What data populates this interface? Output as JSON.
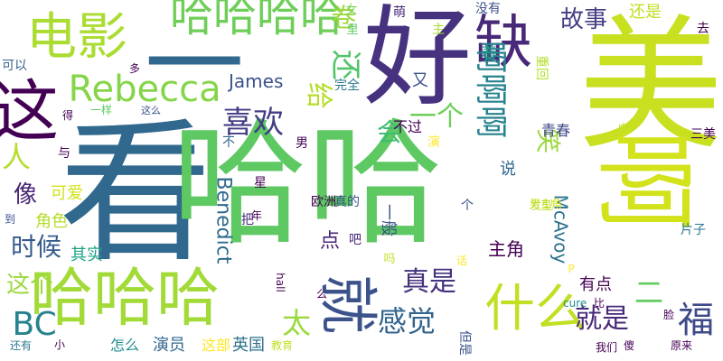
{
  "words": [
    {
      "text": "看",
      "color": "#31688e"
    },
    {
      "text": "美",
      "color": "#c8e020"
    },
    {
      "text": "哈哈",
      "color": "#5ec962"
    },
    {
      "text": "好",
      "color": "#46327e"
    },
    {
      "text": "一",
      "color": "#31688e"
    },
    {
      "text": "啊",
      "color": "#d2e21b"
    },
    {
      "text": "电影",
      "color": "#aadc32"
    },
    {
      "text": "这",
      "color": "#440154"
    },
    {
      "text": "哈哈哈哈",
      "color": "#6ece58"
    },
    {
      "text": "缺",
      "color": "#482878"
    },
    {
      "text": "哈哈哈",
      "color": "#a2da37"
    },
    {
      "text": "就",
      "color": "#3b528b"
    },
    {
      "text": "什么",
      "color": "#c2df23"
    },
    {
      "text": "Rebecca",
      "color": "#86d549"
    },
    {
      "text": "喜欢",
      "color": "#433e85"
    },
    {
      "text": "啊啊啊",
      "color": "#26828e"
    },
    {
      "text": "还",
      "color": "#52c569"
    },
    {
      "text": "卷",
      "color": "#9bd93c"
    },
    {
      "text": "给",
      "color": "#b5de2b"
    },
    {
      "text": "故事",
      "color": "#433e85"
    },
    {
      "text": "还是",
      "color": "#c2df23"
    },
    {
      "text": "James",
      "color": "#3b528b"
    },
    {
      "text": "像",
      "color": "#482576"
    },
    {
      "text": "时候",
      "color": "#365c8d"
    },
    {
      "text": "这个",
      "color": "#9bd93c"
    },
    {
      "text": "BC",
      "color": "#26828e"
    },
    {
      "text": "感觉",
      "color": "#32648e"
    },
    {
      "text": "就是",
      "color": "#482878"
    },
    {
      "text": "真是",
      "color": "#46327e"
    },
    {
      "text": "太",
      "color": "#9bd93c"
    },
    {
      "text": "福",
      "color": "#3e4989"
    },
    {
      "text": "会",
      "color": "#3fbc73"
    },
    {
      "text": "人",
      "color": "#b5de2b"
    },
    {
      "text": "笑",
      "color": "#9bd93c"
    },
    {
      "text": "一个",
      "color": "#6ece58"
    },
    {
      "text": "Benedict",
      "color": "#306a8e"
    },
    {
      "text": "McAvoy",
      "color": "#2c728e"
    },
    {
      "text": "主角",
      "color": "#440154"
    },
    {
      "text": "点",
      "color": "#482576"
    },
    {
      "text": "二",
      "color": "#63cb5f"
    },
    {
      "text": "着",
      "color": "#1f958b"
    },
    {
      "text": "又",
      "color": "#3b528b"
    },
    {
      "text": "其实",
      "color": "#20a386"
    },
    {
      "text": "可爱",
      "color": "#d2e21b"
    },
    {
      "text": "角色",
      "color": "#b5de2b"
    },
    {
      "text": "有点",
      "color": "#440154"
    },
    {
      "text": "演员",
      "color": "#31688e"
    },
    {
      "text": "这部",
      "color": "#fde725"
    },
    {
      "text": "英国",
      "color": "#2d718e"
    },
    {
      "text": "怎么",
      "color": "#228d8d"
    },
    {
      "text": "说",
      "color": "#31688e"
    },
    {
      "text": "不过",
      "color": "#440154"
    },
    {
      "text": "可以",
      "color": "#33638d"
    },
    {
      "text": "没有",
      "color": "#3b528b"
    },
    {
      "text": "青春",
      "color": "#3f4788"
    },
    {
      "text": "片子",
      "color": "#2a788e"
    },
    {
      "text": "三美",
      "color": "#440154"
    },
    {
      "text": "完全",
      "color": "#2a788e"
    },
    {
      "text": "重回",
      "color": "#b5de2b"
    },
    {
      "text": "男主角",
      "color": "#d2e21b"
    },
    {
      "text": "欧洲",
      "color": "#440154"
    },
    {
      "text": "真的",
      "color": "#3b528b"
    },
    {
      "text": "一般",
      "color": "#3b528b"
    },
    {
      "text": "发型",
      "color": "#b5de2b"
    },
    {
      "text": "女",
      "color": "#75d054"
    },
    {
      "text": "萌",
      "color": "#482878"
    },
    {
      "text": "里",
      "color": "#5ec962"
    },
    {
      "text": "主",
      "color": "#aadc32"
    },
    {
      "text": "去",
      "color": "#440154"
    },
    {
      "text": "这么",
      "color": "#3b528b"
    },
    {
      "text": "一样",
      "color": "#5ec962"
    },
    {
      "text": "得",
      "color": "#440154"
    },
    {
      "text": "多",
      "color": "#440154"
    },
    {
      "text": "与",
      "color": "#440154"
    },
    {
      "text": "演",
      "color": "#fde725"
    },
    {
      "text": "男",
      "color": "#440154"
    },
    {
      "text": "不",
      "color": "#31688e"
    },
    {
      "text": "星",
      "color": "#440154"
    },
    {
      "text": "把",
      "color": "#482878"
    },
    {
      "text": "年",
      "color": "#440154"
    },
    {
      "text": "吧",
      "color": "#482878"
    },
    {
      "text": "吗",
      "color": "#c2df23"
    },
    {
      "text": "话",
      "color": "#fde725"
    },
    {
      "text": "么",
      "color": "#440154"
    },
    {
      "text": "比",
      "color": "#440154"
    },
    {
      "text": "脸",
      "color": "#440154"
    },
    {
      "text": "cure",
      "color": "#228d8d"
    },
    {
      "text": "hall",
      "color": "#440154"
    },
    {
      "text": "P",
      "color": "#fde725"
    },
    {
      "text": "个",
      "color": "#3b528b"
    },
    {
      "text": "中",
      "color": "#c2df23"
    },
    {
      "text": "到",
      "color": "#3b528b"
    },
    {
      "text": "还有",
      "color": "#2a788e"
    },
    {
      "text": "小",
      "color": "#440154"
    },
    {
      "text": "教育",
      "color": "#c2df23"
    },
    {
      "text": "但是",
      "color": "#3b528b"
    },
    {
      "text": "傻",
      "color": "#440154"
    },
    {
      "text": "我们",
      "color": "#440154"
    },
    {
      "text": "原来",
      "color": "#440154"
    }
  ]
}
